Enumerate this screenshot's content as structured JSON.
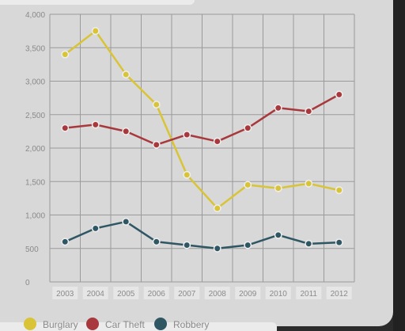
{
  "chart_data": {
    "type": "line",
    "categories": [
      "2003",
      "2004",
      "2005",
      "2006",
      "2007",
      "2008",
      "2009",
      "2010",
      "2011",
      "2012"
    ],
    "yticks": [
      "0",
      "500",
      "1,000",
      "1,500",
      "2,000",
      "2,500",
      "3,000",
      "3,500",
      "4,000"
    ],
    "ylim": [
      0,
      4000
    ],
    "grid": true,
    "legend_position": "bottom-left",
    "series": [
      {
        "name": "Burglary",
        "color": "#d8c436",
        "values": [
          3400,
          3750,
          3100,
          2650,
          1600,
          1100,
          1450,
          1400,
          1470,
          1370
        ]
      },
      {
        "name": "Car Theft",
        "color": "#a8383c",
        "values": [
          2300,
          2350,
          2250,
          2050,
          2200,
          2100,
          2300,
          2600,
          2550,
          2800
        ]
      },
      {
        "name": "Robbery",
        "color": "#2f5663",
        "values": [
          600,
          800,
          900,
          600,
          550,
          500,
          550,
          700,
          570,
          590
        ]
      }
    ],
    "xlabel": "",
    "ylabel": "",
    "title": ""
  }
}
